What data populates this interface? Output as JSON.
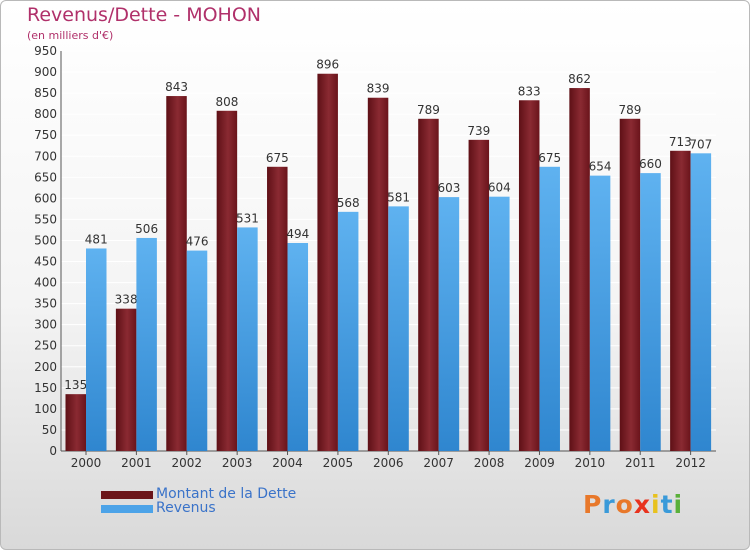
{
  "chart_data": {
    "type": "bar",
    "title": "Revenus/Dette - MOHON",
    "subtitle": "(en milliers d'€)",
    "categories": [
      "2000",
      "2001",
      "2002",
      "2003",
      "2004",
      "2005",
      "2006",
      "2007",
      "2008",
      "2009",
      "2010",
      "2011",
      "2012"
    ],
    "series": [
      {
        "name": "Montant de la Dette",
        "color": "#7a1c24",
        "values": [
          135,
          338,
          843,
          808,
          675,
          896,
          839,
          789,
          739,
          833,
          862,
          789,
          713
        ]
      },
      {
        "name": "Revenus",
        "color": "#4ca3e8",
        "values": [
          481,
          506,
          476,
          531,
          494,
          568,
          581,
          603,
          604,
          675,
          654,
          660,
          707
        ]
      }
    ],
    "ylim": [
      0,
      950
    ],
    "ytick_step": 50,
    "grid": true,
    "legend_position": "bottom-left"
  },
  "branding": {
    "logo_text": "Proxiti",
    "logo_colors": [
      "#e8782a",
      "#3a9ad9",
      "#e8782a",
      "#e8321e",
      "#e8c21e",
      "#3a9ad9",
      "#5ab03a"
    ]
  }
}
